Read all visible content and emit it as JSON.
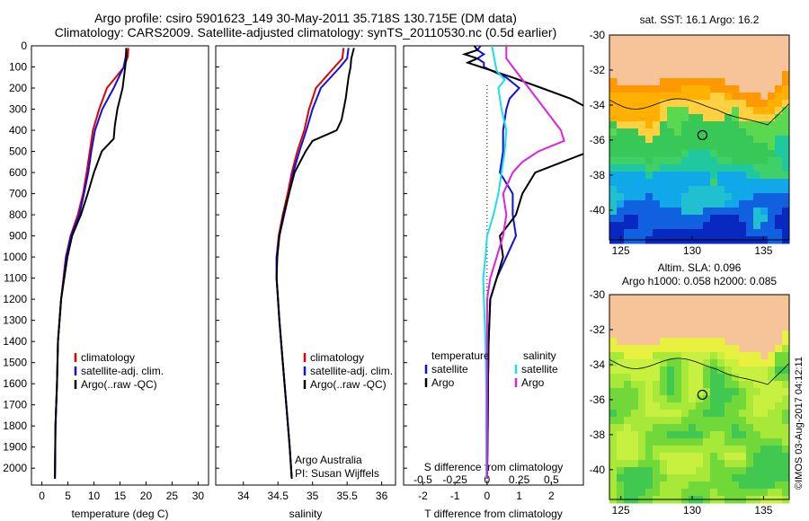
{
  "header": {
    "title_line1": "Argo profile: csiro 5901623_149 30-May-2011 35.718S 130.715E (DM data)",
    "title_line2": "Climatology: CARS2009. Satellite-adjusted climatology: synTS_20110530.nc (0.5d earlier)"
  },
  "colors": {
    "climatology": "#e00000",
    "satellite": "#1010e0",
    "argo": "#000000",
    "sal_satellite": "#18e0e8",
    "sal_argo": "#e020e0",
    "land": "#f7c49a"
  },
  "chart_data": [
    {
      "type": "line",
      "xlabel": "temperature (deg C)",
      "ylabel": "",
      "xlim": [
        -2,
        32
      ],
      "ylim": [
        2080,
        0
      ],
      "xticks": [
        0,
        5,
        10,
        15,
        20,
        25,
        30
      ],
      "yticks": [
        0,
        100,
        200,
        300,
        400,
        500,
        600,
        700,
        800,
        900,
        1000,
        1100,
        1200,
        1300,
        1400,
        1500,
        1600,
        1700,
        1800,
        1900,
        2000
      ],
      "legend": [
        "climatology",
        "satellite-adj. clim.",
        "Argo(..raw -QC)"
      ],
      "legend_position": "lower-right",
      "series": [
        {
          "name": "climatology",
          "color": "#e00000",
          "depth": [
            10,
            50,
            100,
            200,
            300,
            400,
            500,
            600,
            700,
            800,
            900,
            1000,
            1200,
            1400,
            1600,
            1800,
            2050
          ],
          "values": [
            16.6,
            16.5,
            15.8,
            12.5,
            11.0,
            9.8,
            9.2,
            8.6,
            7.9,
            6.9,
            5.5,
            4.6,
            3.7,
            3.1,
            2.9,
            2.6,
            2.5
          ]
        },
        {
          "name": "satellite-adj. clim.",
          "color": "#1010e0",
          "depth": [
            10,
            50,
            100,
            200,
            300,
            400,
            500,
            600,
            700,
            800,
            900,
            1000,
            1200,
            1400,
            1600,
            1800,
            2050
          ],
          "values": [
            16.2,
            16.1,
            15.7,
            13.8,
            11.6,
            10.2,
            9.5,
            8.9,
            8.1,
            7.2,
            5.6,
            4.7,
            3.7,
            3.1,
            2.9,
            2.6,
            2.5
          ]
        },
        {
          "name": "Argo(..raw -QC)",
          "color": "#000000",
          "depth": [
            10,
            50,
            100,
            200,
            300,
            380,
            440,
            500,
            600,
            700,
            800,
            900,
            1000,
            1200,
            1400,
            1600,
            1800,
            2050
          ],
          "values": [
            16.2,
            16.2,
            16.0,
            15.5,
            14.5,
            14.0,
            13.8,
            11.5,
            10.0,
            8.8,
            7.5,
            5.8,
            4.9,
            3.7,
            3.1,
            2.9,
            2.6,
            2.5
          ]
        }
      ]
    },
    {
      "type": "line",
      "xlabel": "salinity",
      "xlim": [
        33.6,
        36.2
      ],
      "ylim": [
        2080,
        0
      ],
      "xticks": [
        34,
        34.5,
        35,
        35.5,
        36
      ],
      "legend": [
        "climatology",
        "satellite-adj. clim.",
        "Argo(..raw -QC)"
      ],
      "annotation": [
        "Argo Australia",
        "PI: Susan Wijffels"
      ],
      "series": [
        {
          "name": "climatology",
          "color": "#e00000",
          "depth": [
            10,
            60,
            100,
            200,
            300,
            400,
            500,
            600,
            700,
            800,
            900,
            1000,
            1100,
            1300,
            1500,
            1700,
            1900,
            2050
          ],
          "values": [
            35.45,
            35.43,
            35.32,
            35.05,
            34.95,
            34.88,
            34.78,
            34.7,
            34.64,
            34.57,
            34.51,
            34.48,
            34.48,
            34.52,
            34.57,
            34.62,
            34.67,
            34.7
          ]
        },
        {
          "name": "satellite-adj. clim.",
          "color": "#1010e0",
          "depth": [
            10,
            60,
            100,
            200,
            300,
            400,
            500,
            600,
            700,
            800,
            900,
            1000,
            1100,
            1300,
            1500,
            1700,
            1900,
            2050
          ],
          "values": [
            35.52,
            35.5,
            35.4,
            35.12,
            35.0,
            34.91,
            34.81,
            34.72,
            34.66,
            34.59,
            34.52,
            34.48,
            34.48,
            34.52,
            34.57,
            34.62,
            34.67,
            34.7
          ]
        },
        {
          "name": "Argo(..raw -QC)",
          "color": "#000000",
          "depth": [
            10,
            60,
            100,
            150,
            250,
            350,
            400,
            450,
            500,
            550,
            600,
            700,
            800,
            900,
            1000,
            1100,
            1300,
            1500,
            1700,
            1900,
            2050
          ],
          "values": [
            35.6,
            35.56,
            35.55,
            35.52,
            35.48,
            35.42,
            35.35,
            35.0,
            34.9,
            34.82,
            34.74,
            34.66,
            34.58,
            34.52,
            34.49,
            34.48,
            34.52,
            34.57,
            34.62,
            34.67,
            34.7
          ]
        }
      ]
    },
    {
      "type": "line",
      "xlabel": "T difference from climatology",
      "xlabel_top": "S difference from climatology",
      "xlim": [
        -2.6,
        3.0
      ],
      "ylim": [
        2080,
        0
      ],
      "xticks": [
        -2,
        -1,
        0,
        1,
        2
      ],
      "xticks_salinity": [
        "-0.5",
        "-0.25",
        "0",
        "0.25",
        "0.5"
      ],
      "legend_temperature_title": "temperature",
      "legend_salinity_title": "salinity",
      "legend_temperature": [
        "satellite",
        "Argo"
      ],
      "legend_salinity": [
        "satellite",
        "Argo"
      ],
      "series": [
        {
          "name": "satellite",
          "group": "temperature",
          "color": "#1010e0",
          "depth": [
            0,
            20,
            40,
            60,
            80,
            100,
            150,
            200,
            250,
            300,
            400,
            500,
            600,
            700,
            800,
            900,
            1000,
            1100,
            1200,
            1400,
            1600,
            1800,
            2050
          ],
          "values": [
            -0.2,
            -0.3,
            -0.1,
            -0.3,
            -0.1,
            -0.1,
            0.6,
            1.0,
            0.7,
            0.6,
            0.5,
            0.5,
            0.4,
            0.8,
            0.8,
            0.9,
            0.6,
            0.3,
            0.1,
            0.05,
            0.03,
            0.02,
            0.0
          ]
        },
        {
          "name": "Argo",
          "group": "temperature",
          "color": "#000000",
          "depth": [
            0,
            20,
            40,
            60,
            80,
            100,
            150,
            200,
            250,
            300,
            380,
            440,
            500,
            600,
            700,
            800,
            900,
            1000,
            1100,
            1200,
            1400,
            1600,
            1800,
            2050
          ],
          "values": [
            -0.4,
            -0.3,
            -0.7,
            -0.3,
            -0.6,
            -0.2,
            0.8,
            1.7,
            2.6,
            3.2,
            3.5,
            3.5,
            3.2,
            1.5,
            1.1,
            0.9,
            0.4,
            0.5,
            0.3,
            0.1,
            0.05,
            0.03,
            0.02,
            0.0
          ]
        },
        {
          "name": "satellite",
          "group": "salinity",
          "color": "#18e0e8",
          "depth": [
            0,
            40,
            80,
            120,
            160,
            200,
            300,
            400,
            500,
            600,
            700,
            800,
            900,
            1000,
            1100,
            1200,
            1400,
            1600,
            1800,
            2050
          ],
          "values": [
            0.15,
            0.2,
            0.25,
            0.3,
            0.55,
            0.35,
            0.45,
            0.6,
            0.55,
            0.45,
            0.35,
            0.2,
            0.0,
            -0.05,
            -0.12,
            -0.1,
            -0.05,
            -0.03,
            -0.03,
            -0.02
          ]
        },
        {
          "name": "Argo",
          "group": "salinity",
          "color": "#e020e0",
          "depth": [
            0,
            60,
            100,
            200,
            300,
            400,
            450,
            500,
            550,
            600,
            700,
            800,
            900,
            1000,
            1100,
            1200,
            1400,
            1600,
            1800,
            2050
          ],
          "values": [
            0.6,
            0.6,
            0.8,
            1.3,
            1.8,
            2.3,
            2.4,
            1.6,
            1.1,
            0.8,
            0.5,
            0.6,
            0.5,
            0.3,
            0.1,
            0.0,
            0.0,
            0.0,
            0.0,
            0.0
          ]
        }
      ]
    },
    {
      "type": "heatmap",
      "title": "sat. SST: 16.1  Argo: 16.2",
      "xticks": [
        125,
        130,
        135
      ],
      "yticks": [
        -30,
        -32,
        -34,
        -36,
        -38,
        -40
      ],
      "xlim": [
        124.2,
        136.8
      ],
      "ylim": [
        -41.7,
        -30.0
      ],
      "marker": {
        "lon": 130.715,
        "lat": -35.718
      }
    },
    {
      "type": "heatmap",
      "title_line1": "Altim. SLA: 0.096",
      "title_line2": "Argo h1000: 0.058  h2000: 0.085",
      "xticks": [
        125,
        130,
        135
      ],
      "yticks": [
        -30,
        -32,
        -34,
        -36,
        -38,
        -40
      ],
      "xlim": [
        124.2,
        136.8
      ],
      "ylim": [
        -41.7,
        -30.0
      ],
      "marker": {
        "lon": 130.715,
        "lat": -35.718
      }
    }
  ],
  "footer": {
    "credit": "©IMOS 03-Aug-2017 04:12:11"
  }
}
